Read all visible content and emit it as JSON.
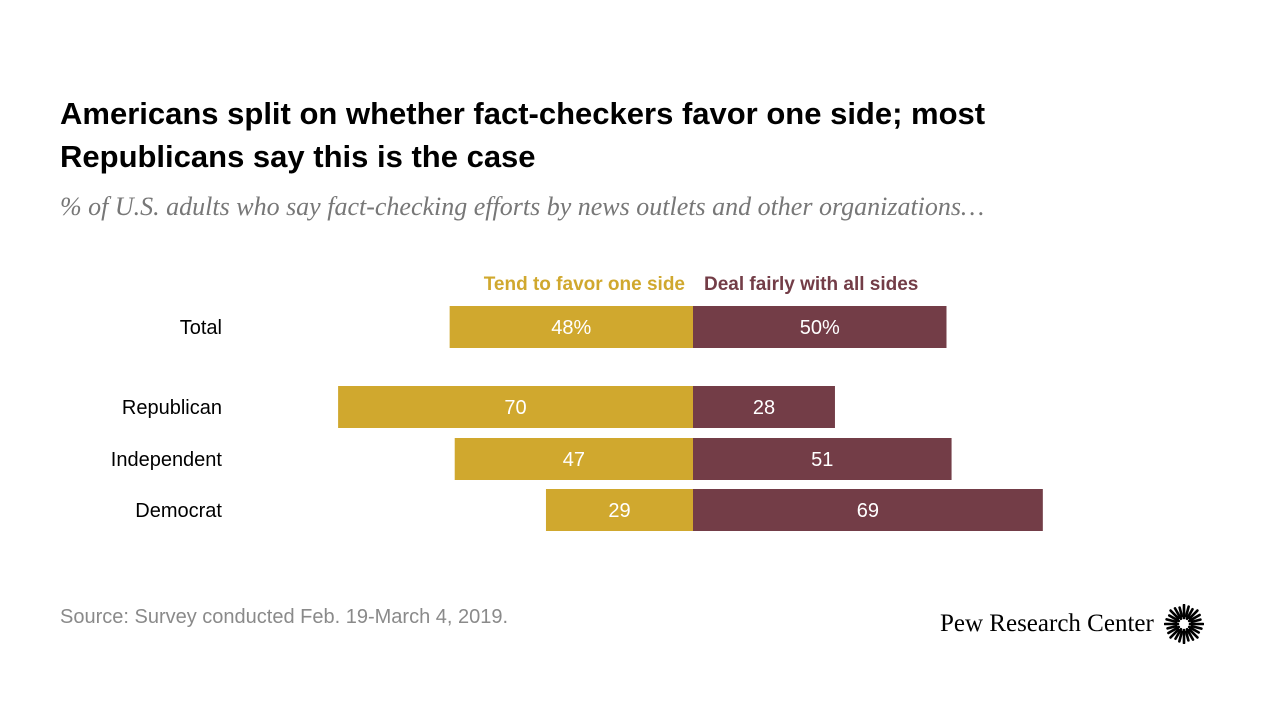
{
  "title": "Americans split on whether fact-checkers favor one side; most Republicans say this is the case",
  "subtitle": "% of U.S. adults who say fact-checking efforts by news outlets and other organizations…",
  "chart_data": {
    "type": "bar",
    "orientation": "horizontal",
    "stacking": "diverging",
    "categories": [
      "Total",
      "Republican",
      "Independent",
      "Democrat"
    ],
    "series": [
      {
        "name": "Tend to favor one side",
        "color": "#D0A82E",
        "values": [
          48,
          70,
          47,
          29
        ],
        "labels": [
          "48%",
          "70",
          "47",
          "29"
        ]
      },
      {
        "name": "Deal fairly with all sides",
        "color": "#733D47",
        "values": [
          50,
          28,
          51,
          69
        ],
        "labels": [
          "50%",
          "28",
          "51",
          "69"
        ]
      }
    ],
    "legend": "top"
  },
  "source": "Source: Survey conducted Feb. 19-March 4, 2019.",
  "brand": {
    "name": "Pew Research Center"
  }
}
